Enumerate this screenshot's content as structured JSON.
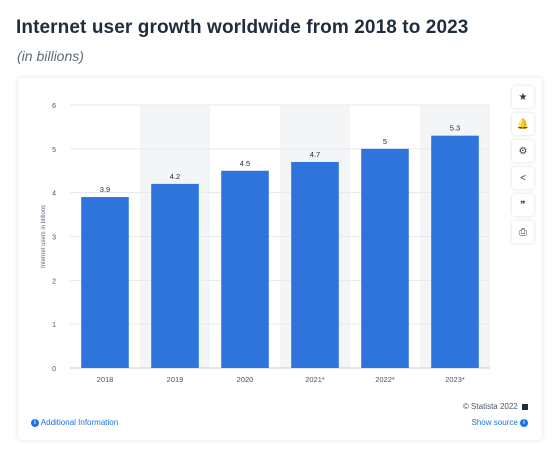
{
  "header": {
    "title": "Internet user growth worldwide from 2018 to 2023",
    "subtitle": "(in billions)"
  },
  "colors": {
    "bar": "#2f74dc",
    "alt_band": "#f4f5f7",
    "grid": "#e6e9ed",
    "link": "#1a73e8"
  },
  "chart_data": {
    "type": "bar",
    "categories": [
      "2018",
      "2019",
      "2020",
      "2021*",
      "2022*",
      "2023*"
    ],
    "values": [
      3.9,
      4.2,
      4.5,
      4.7,
      5,
      5.3
    ],
    "value_labels": [
      "3.9",
      "4.2",
      "4.5",
      "4.7",
      "5",
      "5.3"
    ],
    "title": "",
    "xlabel": "",
    "ylabel": "Internet users in billions",
    "ylim": [
      0,
      6
    ],
    "yticks": [
      0,
      1,
      2,
      3,
      4,
      5,
      6
    ],
    "grid": true,
    "legend": "none"
  },
  "toolbar": {
    "items": [
      {
        "name": "star-icon",
        "glyph": "★"
      },
      {
        "name": "bell-icon",
        "glyph": "🔔"
      },
      {
        "name": "gear-icon",
        "glyph": "⚙"
      },
      {
        "name": "share-icon",
        "glyph": "<"
      },
      {
        "name": "quote-icon",
        "glyph": "❞"
      },
      {
        "name": "print-icon",
        "glyph": "⎙"
      }
    ]
  },
  "footer": {
    "copyright": "© Statista 2022",
    "additional_info": "Additional Information",
    "show_source": "Show source"
  }
}
